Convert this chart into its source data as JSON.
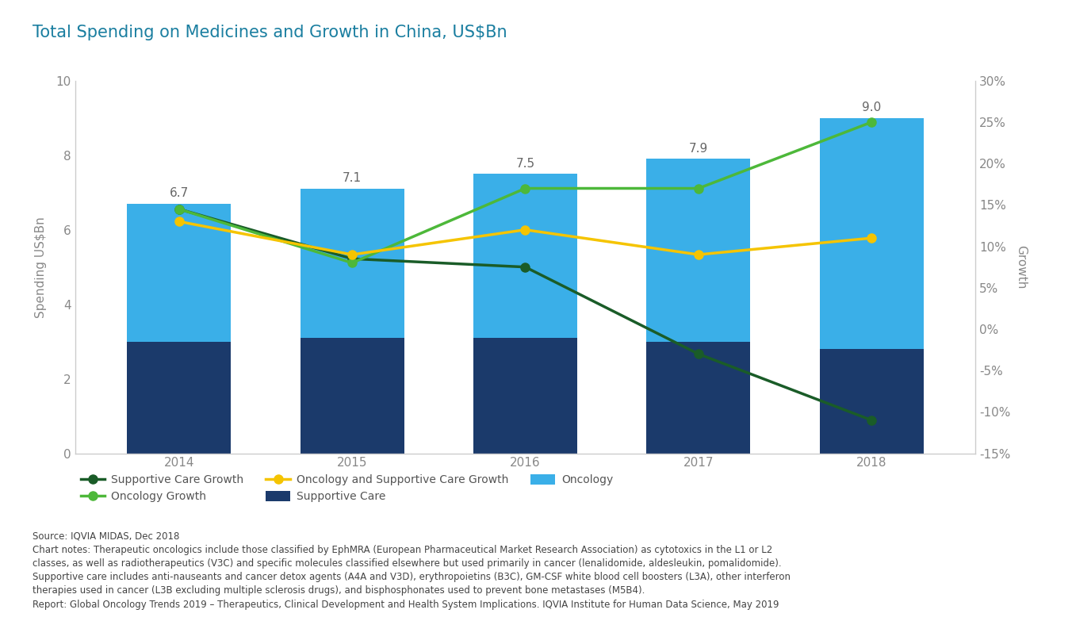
{
  "title": "Total Spending on Medicines and Growth in China, US$Bn",
  "years": [
    2014,
    2015,
    2016,
    2017,
    2018
  ],
  "supportive_care": [
    3.0,
    3.1,
    3.1,
    3.0,
    2.8
  ],
  "oncology": [
    3.7,
    4.0,
    4.4,
    4.9,
    6.2
  ],
  "bar_totals": [
    6.7,
    7.1,
    7.5,
    7.9,
    9.0
  ],
  "supportive_care_growth": [
    14.5,
    8.5,
    7.5,
    -3.0,
    -11.0
  ],
  "oncology_growth": [
    14.5,
    8.0,
    17.0,
    17.0,
    25.0
  ],
  "combined_growth": [
    13.0,
    9.0,
    12.0,
    9.0,
    11.0
  ],
  "color_supportive_care": "#1b3a6b",
  "color_oncology": "#3aafe8",
  "color_supportive_growth": "#1a5c28",
  "color_oncology_growth": "#4db83a",
  "color_combined_growth": "#f5c400",
  "ylabel_left": "Spending US$Bn",
  "ylabel_right": "Growth",
  "ylim_left": [
    0,
    10
  ],
  "ylim_right": [
    -15,
    30
  ],
  "yticks_left": [
    0,
    2,
    4,
    6,
    8,
    10
  ],
  "yticks_right": [
    -15,
    -10,
    -5,
    0,
    5,
    10,
    15,
    20,
    25,
    30
  ],
  "source_text": "Source: IQVIA MIDAS, Dec 2018",
  "note_text1": "Chart notes: Therapeutic oncologics include those classified by EphMRA (European Pharmaceutical Market Research Association) as cytotoxics in the L1 or L2",
  "note_text2": "classes, as well as radiotherapeutics (V3C) and specific molecules classified elsewhere but used primarily in cancer (lenalidomide, aldesleukin, pomalidomide).",
  "note_text3": "Supportive care includes anti-nauseants and cancer detox agents (A4A and V3D), erythropoietins (B3C), GM-CSF white blood cell boosters (L3A), other interferon",
  "note_text4": "therapies used in cancer (L3B excluding multiple sclerosis drugs), and bisphosphonates used to prevent bone metastases (M5B4).",
  "note_text5": "Report: Global Oncology Trends 2019 – Therapeutics, Clinical Development and Health System Implications. IQVIA Institute for Human Data Science, May 2019",
  "bar_width": 0.6,
  "title_color": "#1a7ea0",
  "title_fontsize": 15,
  "axis_label_fontsize": 11,
  "tick_fontsize": 11,
  "note_fontsize": 8.5
}
